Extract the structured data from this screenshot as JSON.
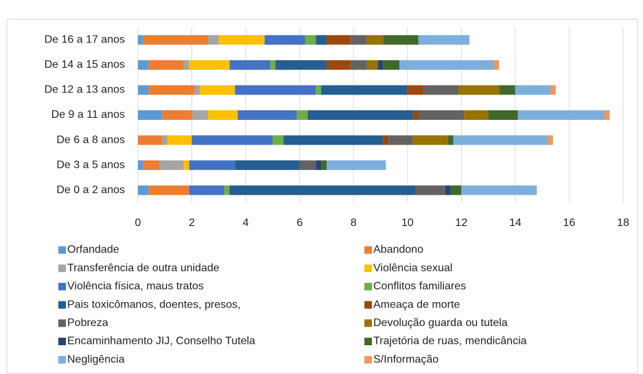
{
  "chart_data": {
    "type": "stacked-barh",
    "categories": [
      "De 16 a 17 anos",
      "De 14 a 15 anos",
      "De 12 a 13 anos",
      "De 9 a 11 anos",
      "De 6 a 8 anos",
      "De 3 a 5 anos",
      "De 0 a 2 anos"
    ],
    "series": [
      {
        "name": "Orfandade",
        "color": "#5b9bd5",
        "values": [
          0.2,
          0.4,
          0.4,
          0.9,
          0,
          0.2,
          0.4
        ]
      },
      {
        "name": "Abandono",
        "color": "#ed7d31",
        "values": [
          2.4,
          1.3,
          1.7,
          1.1,
          0.9,
          0.6,
          1.5
        ]
      },
      {
        "name": "Transferência de outra unidade",
        "color": "#a5a5a5",
        "values": [
          0.4,
          0.2,
          0.2,
          0.6,
          0.2,
          0.9,
          0
        ]
      },
      {
        "name": "Violência sexual",
        "color": "#ffc000",
        "values": [
          1.7,
          1.5,
          1.3,
          1.1,
          0.9,
          0.2,
          0
        ]
      },
      {
        "name": "Violência física, maus tratos",
        "color": "#4472c4",
        "values": [
          1.5,
          1.5,
          3.0,
          2.2,
          3.0,
          1.7,
          1.3
        ]
      },
      {
        "name": "Conflitos familiares",
        "color": "#70ad47",
        "values": [
          0.4,
          0.2,
          0.2,
          0.4,
          0.4,
          0,
          0.2
        ]
      },
      {
        "name": "Pais toxicômanos, doentes, presos,",
        "color": "#255e91",
        "values": [
          0.4,
          1.9,
          3.2,
          3.9,
          3.7,
          2.4,
          6.9
        ]
      },
      {
        "name": "Ameaça de morte",
        "color": "#9e480e",
        "values": [
          0.9,
          0.9,
          0.6,
          0.2,
          0.2,
          0,
          0
        ]
      },
      {
        "name": "Pobreza",
        "color": "#636363",
        "values": [
          0.6,
          0.6,
          1.3,
          1.7,
          0.9,
          0.6,
          1.1
        ]
      },
      {
        "name": "Devolução guarda ou tutela",
        "color": "#997300",
        "values": [
          0.6,
          0.4,
          1.5,
          0.9,
          1.3,
          0,
          0
        ]
      },
      {
        "name": "Encaminhamento JIJ, Conselho Tutela",
        "color": "#264478",
        "values": [
          0,
          0.2,
          0,
          0,
          0,
          0.2,
          0.2
        ]
      },
      {
        "name": "Trajetória de ruas, mendicância",
        "color": "#43682b",
        "values": [
          1.3,
          0.6,
          0.6,
          1.1,
          0.2,
          0.2,
          0.4
        ]
      },
      {
        "name": "Negligência",
        "color": "#7cafdd",
        "values": [
          1.9,
          3.5,
          1.3,
          3.2,
          3.5,
          2.2,
          2.8
        ]
      },
      {
        "name": "S/Informação",
        "color": "#f1975a",
        "values": [
          0,
          0.2,
          0.2,
          0.2,
          0.2,
          0,
          0
        ]
      }
    ],
    "xlim": [
      0,
      18
    ],
    "xticks": [
      0,
      2,
      4,
      6,
      8,
      10,
      12,
      14,
      16,
      18
    ],
    "grid": true
  }
}
